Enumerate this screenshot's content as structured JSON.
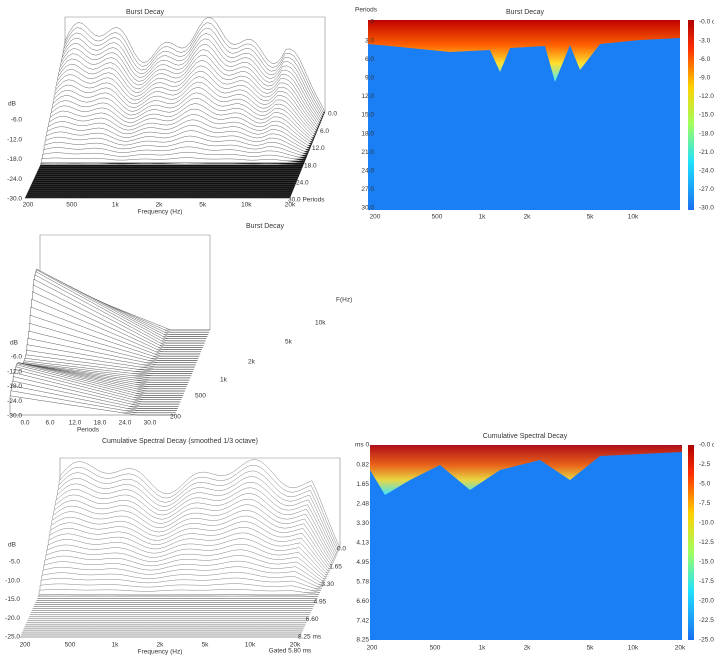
{
  "panels": [
    {
      "title": "Burst Decay",
      "y_label": "dB",
      "y_ticks": [
        "-6.0",
        "-12.0",
        "-18.0",
        "-24.0",
        "-30.0"
      ],
      "x_ticks": [
        "200",
        "500",
        "1k",
        "2k",
        "5k",
        "10k",
        "20k"
      ],
      "x_label": "Frequency (Hz)",
      "depth_ticks": [
        "0.0",
        "6.0",
        "12.0",
        "18.0",
        "24.0",
        "30.0 Periods"
      ]
    },
    {
      "title": "Burst Decay",
      "y_label": "Periods",
      "y_ticks": [
        "0",
        "3.0",
        "6.0",
        "9.0",
        "12.0",
        "15.0",
        "18.0",
        "21.0",
        "24.0",
        "27.0",
        "30.0"
      ],
      "x_ticks": [
        "200",
        "500",
        "1k",
        "2k",
        "5k",
        "10k"
      ],
      "colorbar_ticks": [
        "-0.0 dB",
        "-3.0",
        "-6.0",
        "-9.0",
        "-12.0",
        "-15.0",
        "-18.0",
        "-21.0",
        "-24.0",
        "-27.0",
        "-30.0"
      ]
    },
    {
      "title": "Burst Decay",
      "y_label": "dB",
      "y_ticks": [
        "-6.0",
        "-12.0",
        "-18.0",
        "-24.0",
        "-30.0"
      ],
      "x_ticks": [
        "0.0",
        "6.0",
        "12.0",
        "18.0",
        "24.0",
        "30.0"
      ],
      "x_label": "Periods",
      "depth_ticks": [
        "F(Hz)",
        "10k",
        "5k",
        "2k",
        "1k",
        "500",
        "200"
      ]
    },
    {
      "title": "Cumulative Spectral Decay (smoothed 1/3 octave)",
      "y_label": "dB",
      "y_ticks": [
        "-5.0",
        "-10.0",
        "-15.0",
        "-20.0",
        "-25.0"
      ],
      "x_ticks": [
        "200",
        "500",
        "1k",
        "2k",
        "5k",
        "10k",
        "20k"
      ],
      "x_label": "Frequency (Hz)",
      "depth_ticks": [
        "0.0",
        "1.65",
        "3.30",
        "4.95",
        "6.60",
        "8.25 ms"
      ],
      "note": "Gated 5.80 ms"
    },
    {
      "title": "Cumulative Spectral Decay",
      "y_label": "ms 0",
      "y_ticks": [
        "0.82",
        "1.65",
        "2.48",
        "3.30",
        "4.13",
        "4.95",
        "5.78",
        "6.60",
        "7.42",
        "8.25"
      ],
      "x_ticks": [
        "200",
        "500",
        "1k",
        "2k",
        "5k",
        "10k",
        "20k"
      ],
      "colorbar_ticks": [
        "-0.0 dB",
        "-2.5",
        "-5.0",
        "-7.5",
        "-10.0",
        "-12.5",
        "-15.0",
        "-17.5",
        "-20.0",
        "-22.5",
        "-25.0"
      ]
    }
  ]
}
